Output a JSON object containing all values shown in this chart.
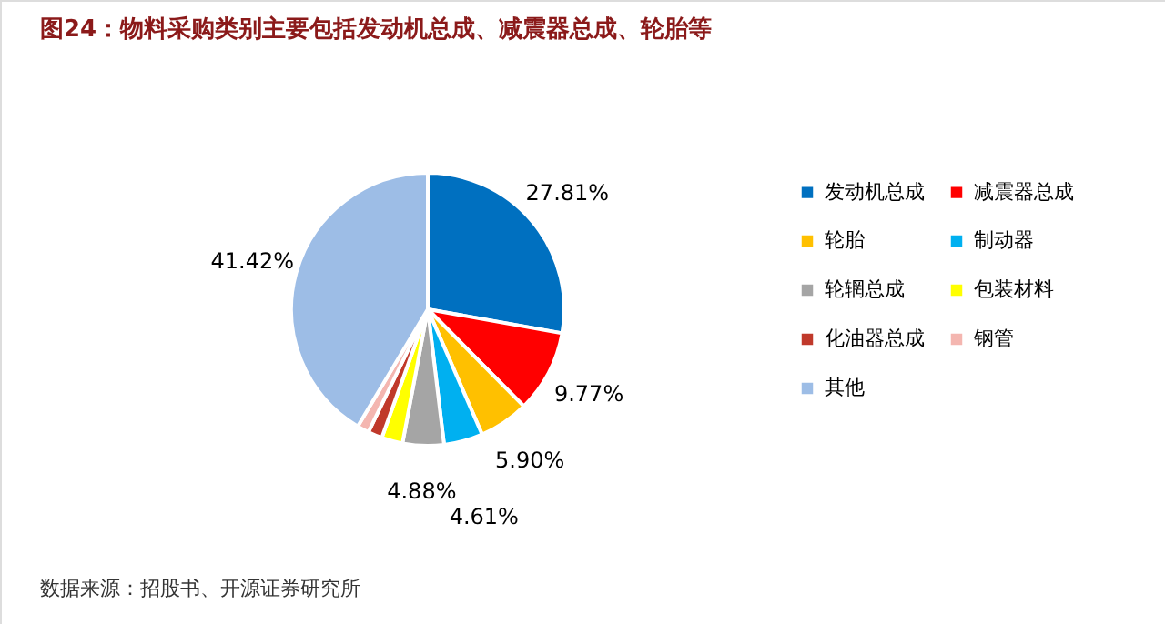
{
  "chart_data": {
    "type": "pie",
    "title": "图24：物料采购类别主要包括发动机总成、减震器总成、轮胎等",
    "categories": [
      "发动机总成",
      "减震器总成",
      "轮胎",
      "制动器",
      "轮辋总成",
      "包装材料",
      "化油器总成",
      "钢管",
      "其他"
    ],
    "values": [
      27.81,
      9.77,
      5.9,
      4.61,
      4.88,
      2.5,
      1.7,
      1.41,
      41.42
    ],
    "value_labels": [
      "27.81%",
      "9.77%",
      "5.90%",
      "4.61%",
      "4.88%",
      null,
      null,
      null,
      "41.42%"
    ],
    "colors": [
      "#0070c0",
      "#ff0000",
      "#ffc000",
      "#00b0f0",
      "#a5a5a5",
      "#ffff00",
      "#c0392b",
      "#f4b6b0",
      "#9dbde6"
    ],
    "legend": "right",
    "annotations": [
      "数据来源：招股书、开源证券研究所"
    ]
  }
}
